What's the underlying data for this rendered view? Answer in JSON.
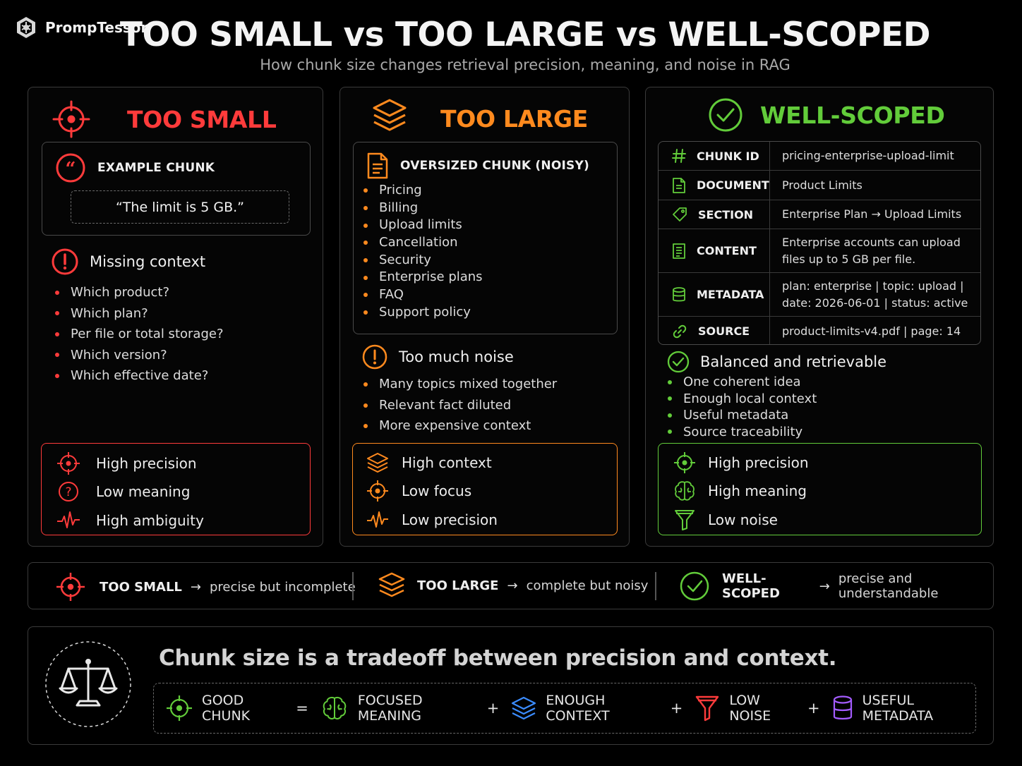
{
  "brand": {
    "name": "PrompTessor"
  },
  "header": {
    "title": "TOO SMALL vs TOO LARGE vs WELL-SCOPED",
    "subtitle": "How chunk size changes retrieval precision, meaning, and noise in RAG"
  },
  "colors": {
    "small": "#ff3b3b",
    "large": "#ff8a1e",
    "scoped": "#62cc3a",
    "context": "#3b8cff",
    "metadata": "#a45cff"
  },
  "too_small": {
    "title": "TOO SMALL",
    "example_label": "EXAMPLE CHUNK",
    "example_quote": "“The limit is 5 GB.”",
    "section_title": "Missing context",
    "bullets": [
      "Which product?",
      "Which plan?",
      "Per file or total storage?",
      "Which version?",
      "Which effective date?"
    ],
    "metrics": [
      {
        "icon": "target-icon",
        "label": "High precision"
      },
      {
        "icon": "question-icon",
        "label": "Low meaning"
      },
      {
        "icon": "pulse-icon",
        "label": "High ambiguity"
      }
    ]
  },
  "too_large": {
    "title": "TOO LARGE",
    "oversized_label": "OVERSIZED CHUNK (NOISY)",
    "topics": [
      "Pricing",
      "Billing",
      "Upload limits",
      "Cancellation",
      "Security",
      "Enterprise plans",
      "FAQ",
      "Support policy"
    ],
    "section_title": "Too much noise",
    "bullets": [
      "Many topics mixed together",
      "Relevant fact diluted",
      "More expensive context"
    ],
    "metrics": [
      {
        "icon": "layers-icon",
        "label": "High context"
      },
      {
        "icon": "target-icon",
        "label": "Low focus"
      },
      {
        "icon": "pulse-icon",
        "label": "Low precision"
      }
    ]
  },
  "well_scoped": {
    "title": "WELL-SCOPED",
    "table": [
      {
        "icon": "hash-icon",
        "key": "CHUNK ID",
        "value": "pricing-enterprise-upload-limit"
      },
      {
        "icon": "document-icon",
        "key": "DOCUMENT",
        "value": "Product Limits"
      },
      {
        "icon": "tag-icon",
        "key": "SECTION",
        "value": "Enterprise Plan → Upload Limits"
      },
      {
        "icon": "content-icon",
        "key": "CONTENT",
        "value": "Enterprise accounts can upload",
        "value2": "files up to 5 GB per file."
      },
      {
        "icon": "database-icon",
        "key": "METADATA",
        "value": "plan: enterprise  |  topic: upload  |",
        "value2": "date: 2026-06-01  |  status: active"
      },
      {
        "icon": "link-icon",
        "key": "SOURCE",
        "value": "product-limits-v4.pdf  |  page: 14"
      }
    ],
    "section_title": "Balanced and retrievable",
    "bullets": [
      "One coherent idea",
      "Enough local context",
      "Useful metadata",
      "Source traceability"
    ],
    "metrics": [
      {
        "icon": "target-icon",
        "label": "High precision"
      },
      {
        "icon": "brain-icon",
        "label": "High meaning"
      },
      {
        "icon": "funnel-icon",
        "label": "Low noise"
      }
    ]
  },
  "summary": [
    {
      "key": "TOO SMALL",
      "arrow": "→",
      "value": "precise but incomplete"
    },
    {
      "key": "TOO LARGE",
      "arrow": "→",
      "value": "complete but noisy"
    },
    {
      "key": "WELL-SCOPED",
      "arrow": "→",
      "value": "precise and understandable"
    }
  ],
  "bottom": {
    "tagline": "Chunk size is a tradeoff between precision and context.",
    "formula": {
      "good": "GOOD CHUNK",
      "eq": "=",
      "plus": "+",
      "focused": "FOCUSED MEANING",
      "context": "ENOUGH CONTEXT",
      "noise": "LOW NOISE",
      "metadata": "USEFUL METADATA"
    }
  }
}
